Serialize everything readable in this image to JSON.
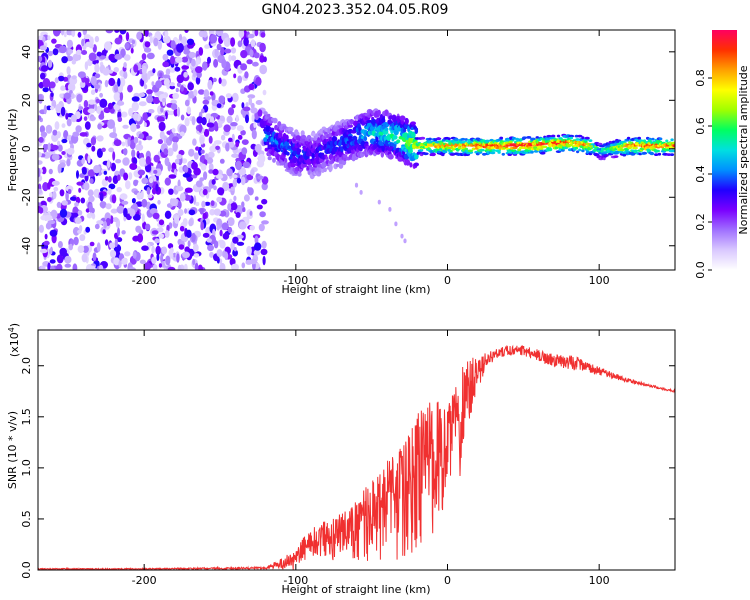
{
  "figure": {
    "title": "GN04.2023.352.04.05.R09"
  },
  "chart_data": [
    {
      "type": "heatmap",
      "name": "spectrogram",
      "title": "",
      "xlabel": "Height of straight line (km)",
      "ylabel": "Frequency (Hz)",
      "xlim": [
        -270,
        150
      ],
      "ylim": [
        -50,
        49
      ],
      "x_ticks": [
        -200,
        -100,
        0,
        100
      ],
      "y_ticks": [
        -40,
        -20,
        0,
        20,
        40
      ],
      "x_tick_labels": [
        "-200",
        "-100",
        "0",
        "100"
      ],
      "y_tick_labels": [
        "-40",
        "-20",
        "0",
        "20",
        "40"
      ],
      "noise_region_x": [
        -270,
        -120
      ],
      "signal_track": [
        {
          "x": -120,
          "y": 6,
          "amp": 0.45
        },
        {
          "x": -110,
          "y": 2,
          "amp": 0.4
        },
        {
          "x": -100,
          "y": -2,
          "amp": 0.4
        },
        {
          "x": -90,
          "y": -3,
          "amp": 0.35
        },
        {
          "x": -80,
          "y": 0,
          "amp": 0.35
        },
        {
          "x": -70,
          "y": 2,
          "amp": 0.4
        },
        {
          "x": -60,
          "y": 5,
          "amp": 0.45
        },
        {
          "x": -50,
          "y": 7,
          "amp": 0.5
        },
        {
          "x": -40,
          "y": 6,
          "amp": 0.55
        },
        {
          "x": -30,
          "y": 4,
          "amp": 0.6
        },
        {
          "x": -20,
          "y": 1,
          "amp": 0.75
        },
        {
          "x": -10,
          "y": 1,
          "amp": 0.8
        },
        {
          "x": 0,
          "y": 1,
          "amp": 0.85
        },
        {
          "x": 20,
          "y": 1,
          "amp": 0.9
        },
        {
          "x": 40,
          "y": 1,
          "amp": 0.95
        },
        {
          "x": 60,
          "y": 1.5,
          "amp": 0.95
        },
        {
          "x": 80,
          "y": 2.5,
          "amp": 0.9
        },
        {
          "x": 95,
          "y": 1,
          "amp": 0.8
        },
        {
          "x": 100,
          "y": -1,
          "amp": 0.5
        },
        {
          "x": 120,
          "y": 1,
          "amp": 0.9
        },
        {
          "x": 150,
          "y": 1,
          "amp": 0.9
        }
      ],
      "stray_points": [
        {
          "x": -60,
          "y": -15
        },
        {
          "x": -57,
          "y": -18
        },
        {
          "x": -45,
          "y": -22
        },
        {
          "x": -38,
          "y": -25
        },
        {
          "x": -34,
          "y": -31
        },
        {
          "x": -30,
          "y": -36
        },
        {
          "x": -28,
          "y": -38
        }
      ]
    },
    {
      "type": "colorbar",
      "name": "amplitude-colorbar",
      "label": "Normalized spectral amplitude",
      "range": [
        0,
        1
      ],
      "ticks": [
        0.0,
        0.2,
        0.4,
        0.6,
        0.8
      ],
      "tick_labels": [
        "0.0",
        "0.2",
        "0.4",
        "0.6",
        "0.8"
      ],
      "colormap": [
        "#ffffff",
        "#d9c8ff",
        "#a070ff",
        "#7a00ff",
        "#2000ff",
        "#0090ff",
        "#00e0e0",
        "#00ff60",
        "#a0ff00",
        "#ffff00",
        "#ffa000",
        "#ff3000",
        "#ff0060"
      ]
    },
    {
      "type": "line",
      "name": "snr",
      "title": "",
      "xlabel": "Height of straight line (km)",
      "ylabel": "SNR (10 * v/v)",
      "y_multiplier_label": "(x10",
      "y_multiplier_exponent": "4",
      "xlim": [
        -270,
        150
      ],
      "ylim": [
        0,
        23500
      ],
      "x_ticks": [
        -200,
        -100,
        0,
        100
      ],
      "y_ticks": [
        0,
        5000,
        10000,
        15000,
        20000
      ],
      "x_tick_labels": [
        "-200",
        "-100",
        "0",
        "100"
      ],
      "y_tick_labels": [
        "0.0",
        "0.5",
        "1.0",
        "1.5",
        "2.0"
      ],
      "color": "#f03030",
      "envelope": {
        "x": [
          -270,
          -200,
          -120,
          -100,
          -95,
          -90,
          -80,
          -70,
          -60,
          -55,
          -50,
          -45,
          -40,
          -35,
          -30,
          -25,
          -20,
          -15,
          -10,
          -5,
          0,
          5,
          8,
          10,
          15,
          20,
          25,
          30,
          40,
          50,
          60,
          70,
          80,
          90,
          100,
          110,
          120,
          130,
          140,
          150
        ],
        "base": [
          100,
          100,
          200,
          1000,
          1500,
          2000,
          2300,
          2600,
          3000,
          3200,
          3500,
          3800,
          4000,
          4500,
          5000,
          5500,
          6000,
          7000,
          8000,
          9000,
          10000,
          14000,
          12000,
          16000,
          18000,
          19000,
          20500,
          21000,
          21500,
          21500,
          21000,
          20500,
          20500,
          20000,
          19500,
          19000,
          18500,
          18200,
          17800,
          17500
        ],
        "noise": [
          60,
          60,
          100,
          1000,
          2000,
          2500,
          3000,
          3500,
          4500,
          5500,
          6500,
          7000,
          8000,
          8500,
          9500,
          10000,
          11000,
          11000,
          10000,
          9000,
          7000,
          5000,
          6000,
          4000,
          3000,
          1500,
          800,
          600,
          500,
          500,
          600,
          600,
          900,
          500,
          400,
          300,
          200,
          150,
          120,
          100
        ]
      }
    }
  ]
}
